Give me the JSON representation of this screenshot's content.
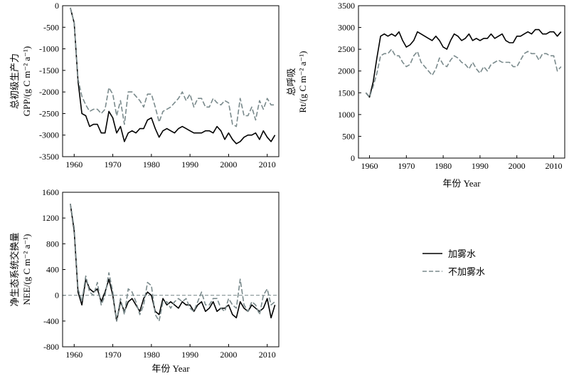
{
  "legend": {
    "with_fog": "加雾水",
    "without_fog": "不加雾水"
  },
  "chart_data": [
    {
      "type": "line",
      "panel": "top-left",
      "ylabel_line1": "总初级生产力",
      "ylabel_line2": "GPP/(g C m⁻² a⁻¹)",
      "xlabel": "",
      "xlim": [
        1957,
        2013
      ],
      "ylim": [
        -3500,
        0
      ],
      "xticks": [
        1960,
        1970,
        1980,
        1990,
        2000,
        2010
      ],
      "yticks": [
        -3500,
        -3000,
        -2500,
        -2000,
        -1500,
        -1000,
        -500,
        0
      ],
      "x": [
        1959,
        1960,
        1961,
        1962,
        1963,
        1964,
        1965,
        1966,
        1967,
        1968,
        1969,
        1970,
        1971,
        1972,
        1973,
        1974,
        1975,
        1976,
        1977,
        1978,
        1979,
        1980,
        1981,
        1982,
        1983,
        1984,
        1985,
        1986,
        1987,
        1988,
        1989,
        1990,
        1991,
        1992,
        1993,
        1994,
        1995,
        1996,
        1997,
        1998,
        1999,
        2000,
        2001,
        2002,
        2003,
        2004,
        2005,
        2006,
        2007,
        2008,
        2009,
        2010,
        2011,
        2012
      ],
      "series": [
        {
          "name": "加雾水",
          "style": "solid",
          "color": "#000000",
          "values": [
            -50,
            -400,
            -1750,
            -2500,
            -2550,
            -2800,
            -2750,
            -2750,
            -2950,
            -2950,
            -2450,
            -2600,
            -2950,
            -2800,
            -3150,
            -2950,
            -2900,
            -2950,
            -2850,
            -2850,
            -2650,
            -2600,
            -2850,
            -3050,
            -2900,
            -2850,
            -2900,
            -2950,
            -2850,
            -2800,
            -2850,
            -2900,
            -2950,
            -2950,
            -2950,
            -2900,
            -2900,
            -2950,
            -2800,
            -2900,
            -3100,
            -2950,
            -3100,
            -3200,
            -3150,
            -3050,
            -3000,
            -3000,
            -2950,
            -3100,
            -2900,
            -3050,
            -3150,
            -3000
          ]
        },
        {
          "name": "不加雾水",
          "style": "dashed",
          "color": "#7a8a8c",
          "values": [
            -50,
            -400,
            -1700,
            -2100,
            -2300,
            -2450,
            -2400,
            -2400,
            -2500,
            -2400,
            -1900,
            -2050,
            -2550,
            -2200,
            -2750,
            -2000,
            -2000,
            -2100,
            -2200,
            -2350,
            -2050,
            -2050,
            -2350,
            -2700,
            -2450,
            -2400,
            -2350,
            -2250,
            -2150,
            -2000,
            -2200,
            -2050,
            -2350,
            -2150,
            -2150,
            -2350,
            -2350,
            -2150,
            -2250,
            -2300,
            -2200,
            -2250,
            -2750,
            -2800,
            -2150,
            -2550,
            -2550,
            -2350,
            -2650,
            -2200,
            -2400,
            -2150,
            -2300,
            -2300
          ]
        }
      ]
    },
    {
      "type": "line",
      "panel": "top-right",
      "ylabel_line1": "总呼吸",
      "ylabel_line2": "Rt/(g C m⁻² a⁻¹)",
      "xlabel": "年份 Year",
      "xlim": [
        1957,
        2013
      ],
      "ylim": [
        0,
        3500
      ],
      "xticks": [
        1960,
        1970,
        1980,
        1990,
        2000,
        2010
      ],
      "yticks": [
        0,
        500,
        1000,
        1500,
        2000,
        2500,
        3000,
        3500
      ],
      "x": [
        1959,
        1960,
        1961,
        1962,
        1963,
        1964,
        1965,
        1966,
        1967,
        1968,
        1969,
        1970,
        1971,
        1972,
        1973,
        1974,
        1975,
        1976,
        1977,
        1978,
        1979,
        1980,
        1981,
        1982,
        1983,
        1984,
        1985,
        1986,
        1987,
        1988,
        1989,
        1990,
        1991,
        1992,
        1993,
        1994,
        1995,
        1996,
        1997,
        1998,
        1999,
        2000,
        2001,
        2002,
        2003,
        2004,
        2005,
        2006,
        2007,
        2008,
        2009,
        2010,
        2011,
        2012
      ],
      "series": [
        {
          "name": "加雾水",
          "style": "solid",
          "color": "#000000",
          "values": [
            1500,
            1400,
            1750,
            2300,
            2800,
            2850,
            2800,
            2850,
            2800,
            2900,
            2700,
            2550,
            2600,
            2700,
            2900,
            2850,
            2800,
            2750,
            2700,
            2800,
            2700,
            2550,
            2500,
            2700,
            2850,
            2800,
            2700,
            2750,
            2850,
            2700,
            2750,
            2700,
            2750,
            2750,
            2850,
            2750,
            2800,
            2850,
            2700,
            2650,
            2650,
            2800,
            2800,
            2850,
            2900,
            2850,
            2950,
            2950,
            2850,
            2850,
            2900,
            2900,
            2800,
            2900
          ]
        },
        {
          "name": "不加雾水",
          "style": "dashed",
          "color": "#7a8a8c",
          "values": [
            1500,
            1400,
            1650,
            1950,
            2350,
            2400,
            2400,
            2500,
            2350,
            2350,
            2200,
            2100,
            2150,
            2350,
            2450,
            2200,
            2100,
            2000,
            1900,
            2050,
            2300,
            2150,
            2100,
            2250,
            2350,
            2300,
            2200,
            2150,
            2050,
            2200,
            2050,
            1950,
            2100,
            2000,
            2150,
            2200,
            2250,
            2200,
            2200,
            2200,
            2100,
            2100,
            2250,
            2400,
            2450,
            2400,
            2400,
            2250,
            2400,
            2400,
            2350,
            2350,
            2000,
            2100
          ]
        }
      ]
    },
    {
      "type": "line",
      "panel": "bottom-left",
      "ylabel_line1": "净生态系统交换量",
      "ylabel_line2": "NEE/(g C m⁻² a⁻¹)",
      "xlabel": "年份 Year",
      "xlim": [
        1957,
        2013
      ],
      "ylim": [
        -800,
        1600
      ],
      "xticks": [
        1960,
        1970,
        1980,
        1990,
        2000,
        2010
      ],
      "yticks": [
        -800,
        -400,
        0,
        400,
        800,
        1200,
        1600
      ],
      "reference_line": 0,
      "x": [
        1959,
        1960,
        1961,
        1962,
        1963,
        1964,
        1965,
        1966,
        1967,
        1968,
        1969,
        1970,
        1971,
        1972,
        1973,
        1974,
        1975,
        1976,
        1977,
        1978,
        1979,
        1980,
        1981,
        1982,
        1983,
        1984,
        1985,
        1986,
        1987,
        1988,
        1989,
        1990,
        1991,
        1992,
        1993,
        1994,
        1995,
        1996,
        1997,
        1998,
        1999,
        2000,
        2001,
        2002,
        2003,
        2004,
        2005,
        2006,
        2007,
        2008,
        2009,
        2010,
        2011,
        2012
      ],
      "series": [
        {
          "name": "加雾水",
          "style": "solid",
          "color": "#000000",
          "values": [
            1420,
            1000,
            50,
            -150,
            250,
            100,
            50,
            100,
            -100,
            50,
            250,
            0,
            -400,
            -100,
            -250,
            -100,
            -50,
            -150,
            -250,
            -50,
            50,
            0,
            -250,
            -300,
            -50,
            -150,
            -100,
            -150,
            -200,
            -100,
            -150,
            -150,
            -250,
            -150,
            -100,
            -250,
            -200,
            -100,
            -250,
            -200,
            -200,
            -150,
            -300,
            -350,
            -100,
            -200,
            -250,
            -150,
            -200,
            -250,
            -200,
            -50,
            -350,
            -150
          ]
        },
        {
          "name": "不加雾水",
          "style": "dashed",
          "color": "#7a8a8c",
          "values": [
            1420,
            1050,
            100,
            -100,
            300,
            50,
            0,
            200,
            -150,
            0,
            350,
            50,
            -400,
            -50,
            -300,
            100,
            50,
            -100,
            -300,
            -150,
            200,
            150,
            -300,
            -400,
            -100,
            -100,
            -200,
            -100,
            -50,
            -100,
            -50,
            -200,
            -250,
            -100,
            50,
            -150,
            -150,
            -50,
            -50,
            -200,
            -250,
            -50,
            -150,
            -200,
            250,
            -150,
            -250,
            -100,
            -150,
            -300,
            0,
            100,
            -150,
            -100
          ]
        }
      ]
    }
  ]
}
